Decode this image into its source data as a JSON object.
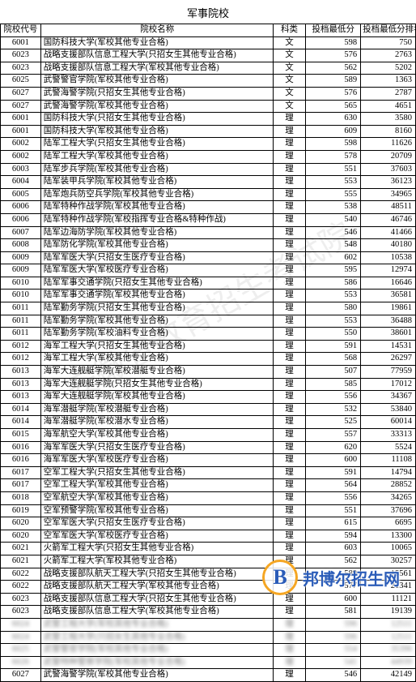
{
  "title": "军事院校",
  "watermark_text": "安徽省教育招生考试院",
  "logo": {
    "letter": "B",
    "text": "邦博尔招生网",
    "border_color": "#f5a623",
    "letter_color": "#2b5cb8"
  },
  "columns": {
    "code": "院校代号",
    "name": "院校名称",
    "subject": "科类",
    "score": "投档最低分",
    "rank": "投档最低分排名"
  },
  "rows": [
    {
      "code": "6001",
      "name": "国防科技大学(军校其他专业合格)",
      "subject": "文",
      "score": "598",
      "rank": "750"
    },
    {
      "code": "6023",
      "name": "战略支援部队信息工程大学(只招女生其他专业合格)",
      "subject": "文",
      "score": "576",
      "rank": "2763"
    },
    {
      "code": "6023",
      "name": "战略支援部队信息工程大学(军校其他专业合格)",
      "subject": "文",
      "score": "562",
      "rank": "5202"
    },
    {
      "code": "6025",
      "name": "武警警官学院(军校其他专业合格)",
      "subject": "文",
      "score": "589",
      "rank": "1363"
    },
    {
      "code": "6027",
      "name": "武警海警学院(只招女生其他专业合格)",
      "subject": "文",
      "score": "576",
      "rank": "2787"
    },
    {
      "code": "6027",
      "name": "武警海警学院(军校其他专业合格)",
      "subject": "文",
      "score": "565",
      "rank": "4651"
    },
    {
      "code": "6001",
      "name": "国防科技大学(只招女生其他专业合格)",
      "subject": "理",
      "score": "630",
      "rank": "3580"
    },
    {
      "code": "6001",
      "name": "国防科技大学(军校其他专业合格)",
      "subject": "理",
      "score": "609",
      "rank": "8160"
    },
    {
      "code": "6002",
      "name": "陆军工程大学(只招女生其他专业合格)",
      "subject": "理",
      "score": "598",
      "rank": "11626"
    },
    {
      "code": "6002",
      "name": "陆军工程大学(军校其他专业合格)",
      "subject": "理",
      "score": "578",
      "rank": "20709"
    },
    {
      "code": "6003",
      "name": "陆军步兵学院(军校其他专业合格)",
      "subject": "理",
      "score": "551",
      "rank": "37603"
    },
    {
      "code": "6004",
      "name": "陆军装甲兵学院(军校其他专业合格)",
      "subject": "理",
      "score": "553",
      "rank": "36123"
    },
    {
      "code": "6005",
      "name": "陆军炮兵防空兵学院(军校其他专业合格)",
      "subject": "理",
      "score": "555",
      "rank": "34965"
    },
    {
      "code": "6006",
      "name": "陆军特种作战学院(军校其他专业合格)",
      "subject": "理",
      "score": "538",
      "rank": "48511"
    },
    {
      "code": "6006",
      "name": "陆军特种作战学院(军校指挥专业合格&特种作战)",
      "subject": "理",
      "score": "540",
      "rank": "46746"
    },
    {
      "code": "6007",
      "name": "陆军边海防学院(军校其他专业合格)",
      "subject": "理",
      "score": "546",
      "rank": "41466"
    },
    {
      "code": "6008",
      "name": "陆军防化学院(军校其他专业合格)",
      "subject": "理",
      "score": "548",
      "rank": "40180"
    },
    {
      "code": "6009",
      "name": "陆军军医大学(只招女生医疗专业合格)",
      "subject": "理",
      "score": "602",
      "rank": "10538"
    },
    {
      "code": "6009",
      "name": "陆军军医大学(军校医疗专业合格)",
      "subject": "理",
      "score": "595",
      "rank": "12974"
    },
    {
      "code": "6010",
      "name": "陆军军事交通学院(只招女生其他专业合格)",
      "subject": "理",
      "score": "586",
      "rank": "16646"
    },
    {
      "code": "6010",
      "name": "陆军军事交通学院(军校其他专业合格)",
      "subject": "理",
      "score": "553",
      "rank": "36581"
    },
    {
      "code": "6011",
      "name": "陆军勤务学院(只招女生其他专业合格)",
      "subject": "理",
      "score": "580",
      "rank": "19861"
    },
    {
      "code": "6011",
      "name": "陆军勤务学院(军校其他专业合格)",
      "subject": "理",
      "score": "553",
      "rank": "36488"
    },
    {
      "code": "6011",
      "name": "陆军勤务学院(军校油料专业合格)",
      "subject": "理",
      "score": "550",
      "rank": "38601"
    },
    {
      "code": "6012",
      "name": "海军工程大学(只招女生其他专业合格)",
      "subject": "理",
      "score": "591",
      "rank": "14531"
    },
    {
      "code": "6012",
      "name": "海军工程大学(军校其他专业合格)",
      "subject": "理",
      "score": "568",
      "rank": "26297"
    },
    {
      "code": "6013",
      "name": "海军大连舰艇学院(军校潜艇专业合格)",
      "subject": "理",
      "score": "507",
      "rank": "77959"
    },
    {
      "code": "6013",
      "name": "海军大连舰艇学院(只招女生其他专业合格)",
      "subject": "理",
      "score": "585",
      "rank": "17012"
    },
    {
      "code": "6013",
      "name": "海军大连舰艇学院(军校其他专业合格)",
      "subject": "理",
      "score": "556",
      "rank": "34367"
    },
    {
      "code": "6014",
      "name": "海军潜艇学院(军校潜艇专业合格)",
      "subject": "理",
      "score": "532",
      "rank": "53840"
    },
    {
      "code": "6014",
      "name": "海军潜艇学院(军校潜水专业合格)",
      "subject": "理",
      "score": "525",
      "rank": "60014"
    },
    {
      "code": "6015",
      "name": "海军航空大学(军校其他专业合格)",
      "subject": "理",
      "score": "557",
      "rank": "33313"
    },
    {
      "code": "6016",
      "name": "海军军医大学(只招女生医疗专业合格)",
      "subject": "理",
      "score": "620",
      "rank": "5524"
    },
    {
      "code": "6016",
      "name": "海军军医大学(军校医疗专业合格)",
      "subject": "理",
      "score": "600",
      "rank": "11108"
    },
    {
      "code": "6017",
      "name": "空军工程大学(只招女生其他专业合格)",
      "subject": "理",
      "score": "591",
      "rank": "14794"
    },
    {
      "code": "6017",
      "name": "空军工程大学(军校其他专业合格)",
      "subject": "理",
      "score": "564",
      "rank": "28852"
    },
    {
      "code": "6018",
      "name": "空军航空大学(军校其他专业合格)",
      "subject": "理",
      "score": "556",
      "rank": "34265"
    },
    {
      "code": "6019",
      "name": "空军预警学院(军校其他专业合格)",
      "subject": "理",
      "score": "551",
      "rank": "37696"
    },
    {
      "code": "6020",
      "name": "空军军医大学(只招女生医疗专业合格)",
      "subject": "理",
      "score": "615",
      "rank": "6695"
    },
    {
      "code": "6020",
      "name": "空军军医大学(军校医疗专业合格)",
      "subject": "理",
      "score": "594",
      "rank": "13300"
    },
    {
      "code": "6021",
      "name": "火箭军工程大学(只招女生其他专业合格)",
      "subject": "理",
      "score": "603",
      "rank": "10065"
    },
    {
      "code": "6021",
      "name": "火箭军工程大学(军校其他专业合格)",
      "subject": "理",
      "score": "562",
      "rank": "30257"
    },
    {
      "code": "6022",
      "name": "战略支援部队航天工程大学(只招女生其他专业合格)",
      "subject": "理",
      "score": "589",
      "rank": "15561"
    },
    {
      "code": "6022",
      "name": "战略支援部队航天工程大学(军校其他专业合格)",
      "subject": "理",
      "score": "577",
      "rank": "21341"
    },
    {
      "code": "6023",
      "name": "战略支援部队信息工程大学(只招女生其他专业合格)",
      "subject": "理",
      "score": "600",
      "rank": "11121"
    },
    {
      "code": "6023",
      "name": "战略支援部队信息工程大学(军校其他专业合格)",
      "subject": "理",
      "score": "581",
      "rank": "19139"
    },
    {
      "code": "6024",
      "name": "武警工程大学(军校其他专业合格)",
      "subject": "理",
      "score": "596",
      "rank": "12511",
      "blur": true
    },
    {
      "code": "6024",
      "name": "武警工程大学(只招女生其他专业合格)",
      "subject": "理",
      "score": "596",
      "rank": "12511",
      "blur": true
    },
    {
      "code": "6025",
      "name": "武警警官学院(军校其他专业合格)",
      "subject": "理",
      "score": "554",
      "rank": "35396",
      "blur": true
    },
    {
      "code": "6026",
      "name": "武警特种警察学院(军校其他专业合格)",
      "subject": "理",
      "score": "541",
      "rank": "44939",
      "blur": true
    },
    {
      "code": "6027",
      "name": "武警海警学院(军校其他专业合格)",
      "subject": "理",
      "score": "546",
      "rank": "42149"
    }
  ]
}
